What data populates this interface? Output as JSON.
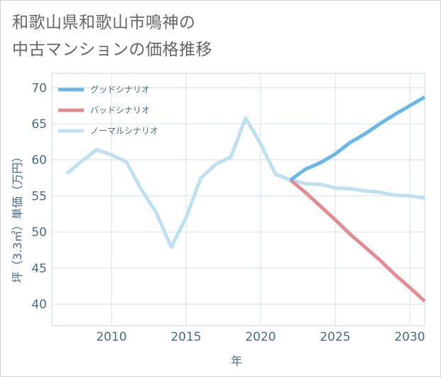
{
  "title": {
    "line1": "和歌山県和歌山市鳴神の",
    "line2": "中古マンションの価格推移"
  },
  "colors": {
    "good": "#6bb7ea",
    "bad": "#e08d94",
    "normal": "#bfe0ef",
    "grid": "#d6e0e8",
    "axis_text": "#4a6b85"
  },
  "chart_data": {
    "type": "line",
    "title": "和歌山県和歌山市鳴神の中古マンションの価格推移",
    "xlabel": "年",
    "ylabel": "坪（3.3㎡）単価（万円）",
    "xlim": [
      2006,
      2031
    ],
    "ylim": [
      37,
      72
    ],
    "x_ticks": [
      2010,
      2015,
      2020,
      2025,
      2030
    ],
    "y_ticks": [
      40,
      45,
      50,
      55,
      60,
      65,
      70
    ],
    "legend_position": "top-left",
    "series": [
      {
        "name": "グッドシナリオ",
        "color": "#6bb7ea",
        "x": [
          2022,
          2023,
          2024,
          2025,
          2026,
          2027,
          2028,
          2029,
          2030,
          2031
        ],
        "values": [
          57.2,
          58.7,
          59.6,
          60.8,
          62.4,
          63.6,
          65.0,
          66.3,
          67.5,
          68.7
        ]
      },
      {
        "name": "バッドシナリオ",
        "color": "#e08d94",
        "x": [
          2022,
          2023,
          2024,
          2025,
          2026,
          2027,
          2028,
          2029,
          2030,
          2031
        ],
        "values": [
          57.2,
          55.5,
          53.6,
          51.7,
          49.7,
          47.9,
          46.1,
          44.1,
          42.3,
          40.4
        ]
      },
      {
        "name": "ノーマルシナリオ",
        "color": "#bfe0ef",
        "x": [
          2007,
          2008,
          2009,
          2010,
          2011,
          2012,
          2013,
          2014,
          2015,
          2016,
          2017,
          2018,
          2019,
          2020,
          2021,
          2022,
          2023,
          2024,
          2025,
          2026,
          2027,
          2028,
          2029,
          2030,
          2031
        ],
        "values": [
          58.1,
          59.8,
          61.4,
          60.7,
          59.7,
          55.9,
          52.7,
          47.9,
          52.0,
          57.5,
          59.4,
          60.4,
          65.8,
          62.2,
          58.0,
          57.2,
          56.7,
          56.6,
          56.1,
          56.0,
          55.7,
          55.5,
          55.1,
          55.0,
          54.7
        ]
      }
    ]
  }
}
